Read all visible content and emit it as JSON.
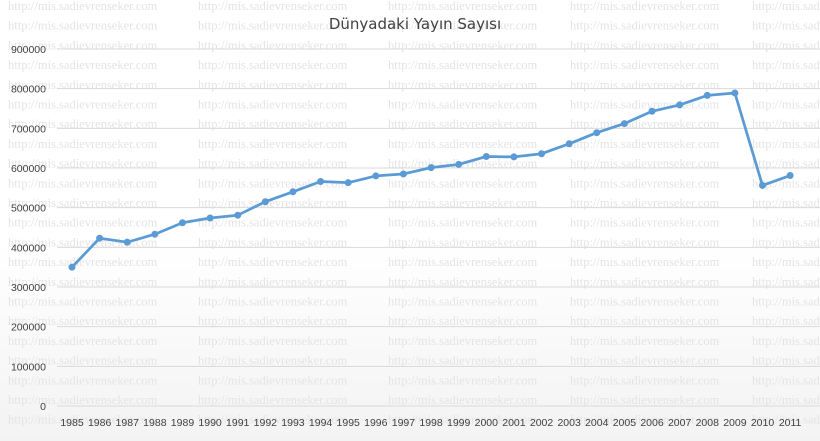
{
  "watermark": "http://mis.sadievrenseker.com",
  "colors": {
    "series": "#5b9bd5",
    "grid": "#d9d9d9",
    "text": "#404040",
    "watermark": "#e4e4e4"
  },
  "chart_data": {
    "type": "line",
    "title": "Dünyadaki Yayın Sayısı",
    "xlabel": "",
    "ylabel": "",
    "grid": true,
    "legend": "none",
    "ylim": [
      0,
      900000
    ],
    "y_ticks": [
      "0",
      "100000",
      "200000",
      "300000",
      "400000",
      "500000",
      "600000",
      "700000",
      "800000",
      "900000"
    ],
    "categories": [
      "1985",
      "1986",
      "1987",
      "1988",
      "1989",
      "1990",
      "1991",
      "1992",
      "1993",
      "1994",
      "1995",
      "1996",
      "1997",
      "1998",
      "1999",
      "2000",
      "2001",
      "2002",
      "2003",
      "2004",
      "2005",
      "2006",
      "2007",
      "2008",
      "2009",
      "2010",
      "2011"
    ],
    "series": [
      {
        "values": [
          350000,
          423000,
          413000,
          433000,
          462000,
          474000,
          481000,
          515000,
          540000,
          566000,
          563000,
          580000,
          585000,
          601000,
          609000,
          629000,
          628000,
          636000,
          661000,
          689000,
          712000,
          743000,
          759000,
          783000,
          789000,
          556000,
          581000
        ]
      }
    ]
  }
}
